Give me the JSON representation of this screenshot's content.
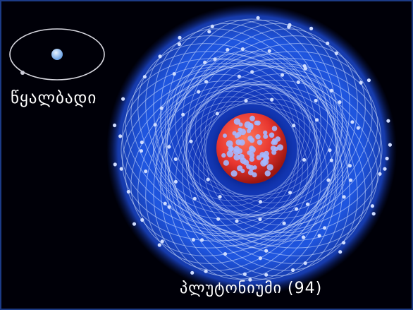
{
  "hydrogen": {
    "label": "წყალბადი"
  },
  "plutonium": {
    "label": "პლუტონიუმი (94)"
  },
  "colors": {
    "background": "#000008",
    "frame": "#1c3b86",
    "electron_cloud": "#1f4fd6",
    "orbit_lines": "#cfe0ff",
    "nucleus_red": "#e8362f",
    "nucleus_blue": "#9fb6ff",
    "label_text": "#ffffff"
  }
}
